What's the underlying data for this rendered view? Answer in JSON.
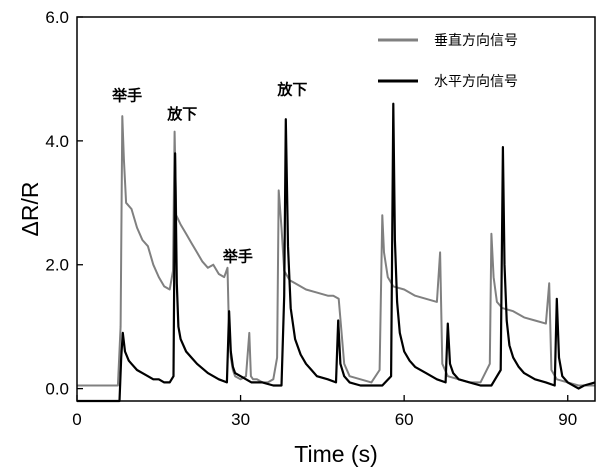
{
  "chart_data": {
    "type": "line",
    "xlabel": "Time (s)",
    "ylabel": "ΔR/R",
    "xlim": [
      0,
      95
    ],
    "ylim": [
      -0.2,
      6.0
    ],
    "x_ticks": [
      {
        "value": 0,
        "label": "0"
      },
      {
        "value": 30,
        "label": "30"
      },
      {
        "value": 60,
        "label": "60"
      },
      {
        "value": 90,
        "label": "90"
      }
    ],
    "y_ticks": [
      {
        "value": 0.0,
        "label": "0.0"
      },
      {
        "value": 2.0,
        "label": "2.0"
      },
      {
        "value": 4.0,
        "label": "4.0"
      },
      {
        "value": 6.0,
        "label": "6.0"
      }
    ],
    "legend_position": "top-right",
    "series": [
      {
        "name": "垂直方向信号",
        "color": "#808080",
        "x": [
          0,
          7.5,
          8,
          8.3,
          8.6,
          9,
          10,
          11,
          12,
          13,
          14,
          15,
          16,
          17,
          17.6,
          17.9,
          18.2,
          19,
          20,
          21,
          22,
          23,
          24,
          25,
          26,
          27,
          27.6,
          27.8,
          28.2,
          28.6,
          29,
          30,
          31,
          31.6,
          31.9,
          32.3,
          33,
          34,
          35,
          36,
          36.7,
          37,
          37.5,
          38,
          39,
          40,
          42,
          44,
          46,
          47,
          48,
          49,
          50,
          52,
          54,
          55.5,
          56,
          56.3,
          57,
          58,
          60,
          62,
          64,
          66,
          66.6,
          67,
          68,
          70,
          72,
          74,
          75.7,
          76,
          76.4,
          77,
          78,
          80,
          82,
          84,
          86,
          86.6,
          87,
          88,
          90,
          92,
          95
        ],
        "y": [
          0.05,
          0.05,
          1.0,
          4.4,
          3.7,
          3.0,
          2.9,
          2.6,
          2.4,
          2.3,
          2.0,
          1.8,
          1.65,
          1.6,
          1.9,
          4.15,
          2.8,
          2.65,
          2.5,
          2.35,
          2.2,
          2.05,
          1.95,
          2.0,
          1.85,
          1.8,
          1.95,
          1.2,
          0.5,
          0.3,
          0.2,
          0.15,
          0.2,
          0.9,
          0.2,
          0.15,
          0.15,
          0.1,
          0.1,
          0.15,
          0.5,
          3.2,
          2.6,
          1.9,
          1.75,
          1.7,
          1.6,
          1.55,
          1.5,
          1.5,
          1.45,
          0.4,
          0.2,
          0.15,
          0.1,
          0.3,
          2.8,
          2.2,
          1.8,
          1.65,
          1.6,
          1.5,
          1.45,
          1.4,
          2.2,
          0.4,
          0.2,
          0.15,
          0.1,
          0.1,
          0.4,
          2.5,
          1.8,
          1.4,
          1.3,
          1.25,
          1.15,
          1.1,
          1.05,
          1.7,
          0.3,
          0.15,
          0.1,
          0.05,
          0.05
        ]
      },
      {
        "name": "水平方向信号",
        "color": "#000000",
        "x": [
          0,
          7.8,
          8.1,
          8.4,
          8.8,
          9.5,
          10,
          11,
          12,
          13,
          14,
          15,
          16,
          17,
          17.7,
          18,
          18.3,
          18.6,
          19,
          20,
          21,
          22,
          24,
          26,
          27.5,
          27.9,
          28.2,
          28.6,
          29,
          30,
          32,
          34,
          36,
          37.5,
          38,
          38.3,
          38.7,
          39.2,
          40,
          41,
          42,
          43,
          44,
          46,
          47.5,
          47.9,
          48.3,
          49,
          50,
          52,
          54,
          56,
          57.6,
          58,
          58.3,
          58.7,
          59.2,
          60,
          61,
          62,
          64,
          66,
          67.6,
          68,
          68.4,
          69,
          70,
          72,
          74,
          76,
          77.7,
          78.1,
          78.4,
          78.8,
          79.3,
          80,
          81,
          82,
          84,
          86,
          87.6,
          88,
          88.4,
          89,
          90,
          92,
          93,
          95
        ],
        "y": [
          -0.2,
          -0.2,
          0.5,
          0.9,
          0.6,
          0.45,
          0.4,
          0.3,
          0.25,
          0.2,
          0.15,
          0.15,
          0.1,
          0.1,
          0.2,
          3.8,
          1.7,
          1.0,
          0.8,
          0.6,
          0.5,
          0.4,
          0.25,
          0.15,
          0.1,
          1.25,
          0.6,
          0.35,
          0.25,
          0.2,
          0.1,
          0.1,
          0.05,
          0.05,
          1.5,
          4.35,
          2.3,
          1.3,
          0.8,
          0.55,
          0.4,
          0.3,
          0.2,
          0.15,
          0.1,
          1.1,
          0.4,
          0.2,
          0.1,
          0.05,
          0.05,
          0.05,
          0.2,
          4.6,
          2.4,
          1.4,
          0.9,
          0.6,
          0.45,
          0.35,
          0.25,
          0.15,
          0.1,
          1.05,
          0.4,
          0.25,
          0.15,
          0.1,
          0.05,
          0.05,
          0.3,
          3.9,
          2.0,
          1.1,
          0.7,
          0.5,
          0.35,
          0.25,
          0.15,
          0.1,
          0.05,
          1.45,
          0.5,
          0.2,
          0.1,
          0.0,
          0.05,
          0.1
        ]
      }
    ],
    "annotations": [
      {
        "text": "举手",
        "x": 9.2,
        "y": 4.65
      },
      {
        "text": "放下",
        "x": 19.3,
        "y": 4.35
      },
      {
        "text": "举手",
        "x": 29.5,
        "y": 2.05
      },
      {
        "text": "放下",
        "x": 39.5,
        "y": 4.75
      }
    ]
  }
}
